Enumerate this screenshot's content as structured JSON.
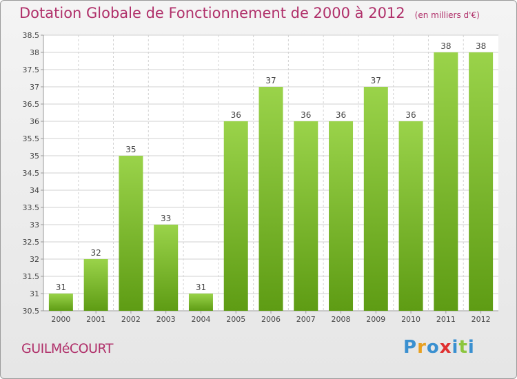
{
  "header": {
    "title": "Dotation Globale de Fonctionnement de 2000 à 2012",
    "unit": "(en milliers d'€)"
  },
  "footer": {
    "town": "GUILMéCOURT",
    "logo_letters": [
      "P",
      "r",
      "o",
      "x",
      "i",
      "t",
      "i"
    ],
    "logo_colors": [
      "#3a90d0",
      "#e8a020",
      "#3a90d0",
      "#e03030",
      "#3a90d0",
      "#8cc63f",
      "#3a90d0"
    ]
  },
  "colors": {
    "title": "#b0306a",
    "bar_light": "#9ad34a",
    "bar_dark": "#5e9c14",
    "grid": "#d2d2d2",
    "axis": "#9a9a9a"
  },
  "chart_data": {
    "type": "bar",
    "title": "Dotation Globale de Fonctionnement de 2000 à 2012",
    "subtitle": "(en milliers d'€)",
    "xlabel": "",
    "ylabel": "",
    "categories": [
      "2000",
      "2001",
      "2002",
      "2003",
      "2004",
      "2005",
      "2006",
      "2007",
      "2008",
      "2009",
      "2010",
      "2011",
      "2012"
    ],
    "values": [
      31,
      32,
      35,
      33,
      31,
      36,
      37,
      36,
      36,
      37,
      36,
      38,
      38
    ],
    "data_labels": [
      "31",
      "32",
      "35",
      "33",
      "31",
      "36",
      "37",
      "36",
      "36",
      "37",
      "36",
      "38",
      "38"
    ],
    "ylim": [
      30.5,
      38.5
    ],
    "yticks": [
      "30.5",
      "31",
      "31.5",
      "32",
      "32.5",
      "33",
      "33.5",
      "34",
      "34.5",
      "35",
      "35.5",
      "36",
      "36.5",
      "37",
      "37.5",
      "38",
      "38.5"
    ],
    "grid": true,
    "legend": "none"
  }
}
